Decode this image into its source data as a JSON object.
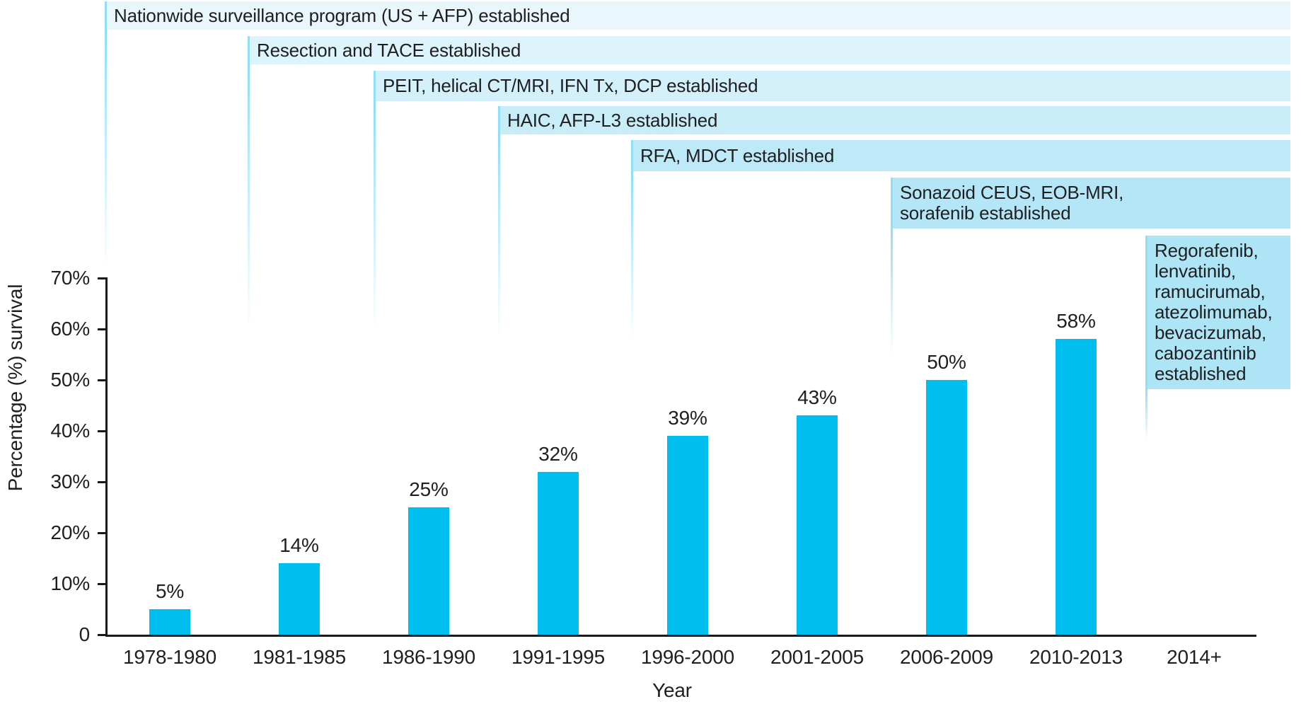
{
  "theme": {
    "bar_color": "#00bef0",
    "banner_line_color": "#8fdff5",
    "axis_color": "#1a1a1a",
    "text_color": "#1f1f1f",
    "background": "#ffffff"
  },
  "chart_data": {
    "type": "bar",
    "title": "",
    "xlabel": "Year",
    "ylabel": "Percentage (%) survival",
    "categories": [
      "1978-1980",
      "1981-1985",
      "1986-1990",
      "1991-1995",
      "1996-2000",
      "2001-2005",
      "2006-2009",
      "2010-2013",
      "2014+"
    ],
    "values": [
      5,
      14,
      25,
      32,
      39,
      43,
      50,
      58,
      null
    ],
    "value_labels": [
      "5%",
      "14%",
      "25%",
      "32%",
      "39%",
      "43%",
      "50%",
      "58%"
    ],
    "ylim": [
      0,
      70
    ],
    "yticks": [
      0,
      10,
      20,
      30,
      40,
      50,
      60,
      70
    ],
    "ytick_labels": [
      "0",
      "10%",
      "20%",
      "30%",
      "40%",
      "50%",
      "60%",
      "70%"
    ],
    "grid": false,
    "legend": false,
    "bar_color": "#00bef0",
    "annotations": [
      {
        "start": "1978-1980",
        "fill": "#e9f7fd",
        "text": "Nationwide surveillance program (US + AFP) established"
      },
      {
        "start": "1981-1985",
        "fill": "#def4fc",
        "text": "Resection and TACE established"
      },
      {
        "start": "1986-1990",
        "fill": "#d3f0fb",
        "text": "PEIT, helical CT/MRI, IFN Tx, DCP established"
      },
      {
        "start": "1991-1995",
        "fill": "#c8edf9",
        "text": "HAIC, AFP-L3 established"
      },
      {
        "start": "1996-2000",
        "fill": "#bee9f8",
        "text": "RFA, MDCT established"
      },
      {
        "start": "2006-2009",
        "fill": "#b4e6f7",
        "text": "Sonazoid CEUS, EOB-MRI,\nsorafenib established"
      },
      {
        "start": "2014+",
        "fill": "#ade4f6",
        "text": "Regorafenib,\nlenvatinib,\nramucirumab,\natezolimumab,\nbevacizumab,\ncabozantinib\nestablished"
      }
    ]
  }
}
